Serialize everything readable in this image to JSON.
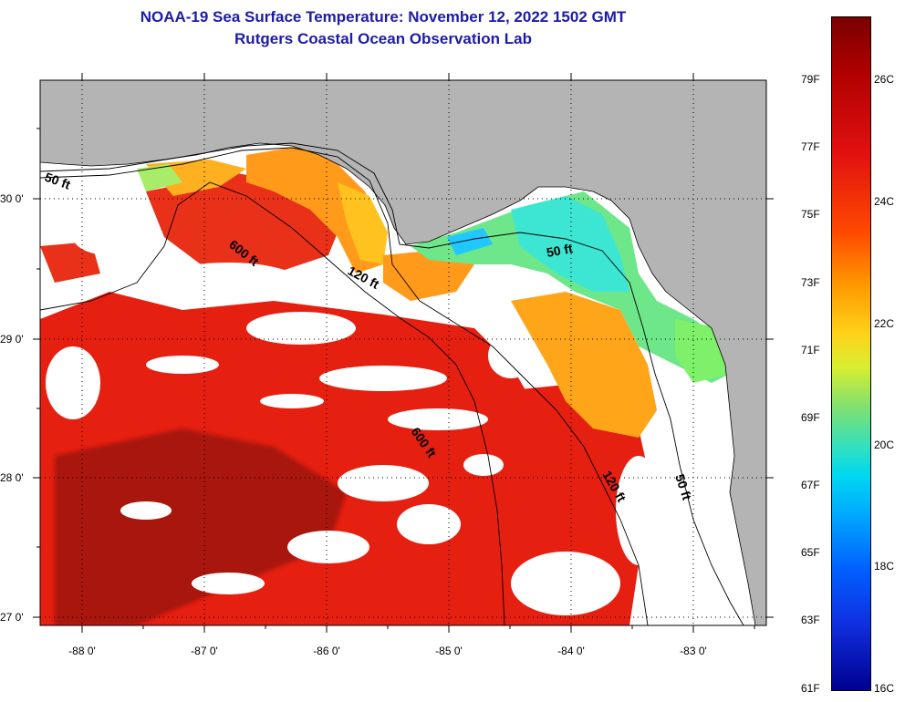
{
  "title": {
    "line1": "NOAA-19 Sea Surface Temperature:  November 12, 2022 1502 GMT",
    "line2": "Rutgers Coastal Ocean Observation Lab"
  },
  "map": {
    "lon_range": [
      -88.35,
      -82.5
    ],
    "lat_range": [
      26.92,
      30.85
    ],
    "x_tick_labels": [
      "-88 0'",
      "-87 0'",
      "-86 0'",
      "-85 0'",
      "-84 0'",
      "-83 0'"
    ],
    "y_tick_labels": [
      "30 0'",
      "29 0'",
      "28 0'",
      "27 0'"
    ],
    "grid": "dotted",
    "depth_contours": [
      "50 ft",
      "120 ft",
      "600 ft"
    ],
    "colors": {
      "land": "#b4b4b4",
      "cloud_mask": "#ffffff",
      "warm": "#e62010",
      "darkwarm": "#9b0f08",
      "orange": "#ffa51a",
      "yellow": "#f0dc2a",
      "green": "#6ee68a",
      "cyan": "#3ce6d2"
    }
  },
  "colorbar": {
    "fahrenheit_labels": [
      "79F",
      "77F",
      "75F",
      "73F",
      "71F",
      "69F",
      "67F",
      "65F",
      "63F",
      "61F"
    ],
    "celsius_labels": [
      "26C",
      "24C",
      "22C",
      "20C",
      "18C",
      "16C"
    ]
  }
}
